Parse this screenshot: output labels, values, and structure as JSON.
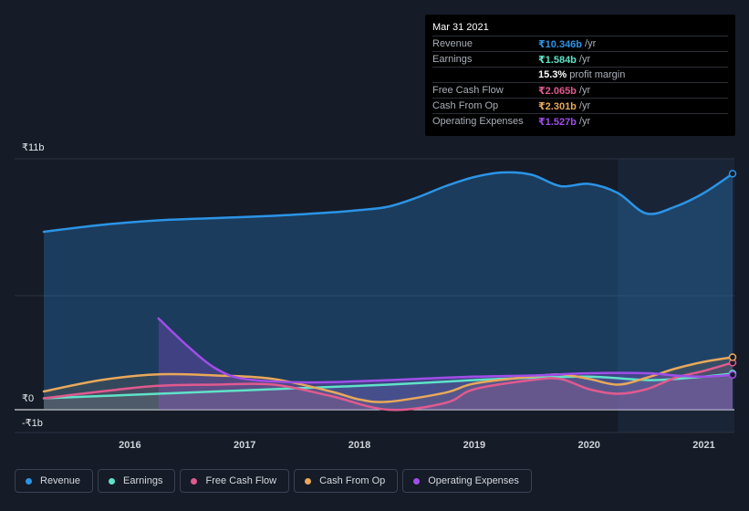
{
  "tooltip": {
    "date": "Mar 31 2021",
    "rows": [
      {
        "name": "Revenue",
        "value": "₹10.346b",
        "unit": "/yr",
        "color": "#2b94e6"
      },
      {
        "name": "Earnings",
        "value": "₹1.584b",
        "unit": "/yr",
        "color": "#5fe2c8"
      },
      {
        "name": "",
        "value": "15.3%",
        "unit": "profit margin",
        "color": "#ffffff"
      },
      {
        "name": "Free Cash Flow",
        "value": "₹2.065b",
        "unit": "/yr",
        "color": "#e05a8f"
      },
      {
        "name": "Cash From Op",
        "value": "₹2.301b",
        "unit": "/yr",
        "color": "#e9a85a"
      },
      {
        "name": "Operating Expenses",
        "value": "₹1.527b",
        "unit": "/yr",
        "color": "#a04ee8"
      }
    ]
  },
  "legend": [
    {
      "label": "Revenue",
      "color": "#2b94e6"
    },
    {
      "label": "Earnings",
      "color": "#5fe2c8"
    },
    {
      "label": "Free Cash Flow",
      "color": "#e05a8f"
    },
    {
      "label": "Cash From Op",
      "color": "#e9a85a"
    },
    {
      "label": "Operating Expenses",
      "color": "#a04ee8"
    }
  ],
  "chart_data": {
    "type": "area",
    "y_unit": "₹ billions",
    "ylim": [
      -1,
      11
    ],
    "y_tick_labels": [
      "₹11b",
      "₹0",
      "-₹1b"
    ],
    "x_tick_labels": [
      "2016",
      "2017",
      "2018",
      "2019",
      "2020",
      "2021"
    ],
    "xlim": [
      2015.25,
      2021.25
    ],
    "highlight_range": [
      2020.25,
      2021.25
    ],
    "series": [
      {
        "name": "Revenue",
        "color": "#2b94e6",
        "x": [
          2015.25,
          2015.75,
          2016.25,
          2016.75,
          2017.25,
          2017.75,
          2018.0,
          2018.25,
          2018.5,
          2018.75,
          2019.0,
          2019.25,
          2019.5,
          2019.75,
          2020.0,
          2020.25,
          2020.5,
          2020.75,
          2021.0,
          2021.25
        ],
        "y": [
          7.8,
          8.1,
          8.3,
          8.4,
          8.5,
          8.65,
          8.75,
          8.9,
          9.3,
          9.8,
          10.2,
          10.4,
          10.3,
          9.8,
          9.9,
          9.5,
          8.6,
          8.9,
          9.5,
          10.346
        ]
      },
      {
        "name": "Earnings",
        "color": "#5fe2c8",
        "x": [
          2015.25,
          2016.0,
          2016.75,
          2017.5,
          2018.25,
          2019.0,
          2019.5,
          2020.0,
          2020.5,
          2020.75,
          2021.0,
          2021.25
        ],
        "y": [
          0.5,
          0.65,
          0.8,
          0.95,
          1.1,
          1.3,
          1.4,
          1.45,
          1.3,
          1.35,
          1.45,
          1.584
        ]
      },
      {
        "name": "Free Cash Flow",
        "color": "#e05a8f",
        "x": [
          2015.25,
          2015.75,
          2016.25,
          2016.75,
          2017.25,
          2017.75,
          2018.25,
          2018.75,
          2019.0,
          2019.5,
          2019.75,
          2020.0,
          2020.25,
          2020.5,
          2020.75,
          2021.0,
          2021.25
        ],
        "y": [
          0.5,
          0.8,
          1.05,
          1.1,
          1.1,
          0.6,
          0.0,
          0.3,
          0.9,
          1.3,
          1.35,
          0.9,
          0.7,
          0.9,
          1.4,
          1.7,
          2.065
        ]
      },
      {
        "name": "Cash From Op",
        "color": "#e9a85a",
        "x": [
          2015.25,
          2015.75,
          2016.25,
          2016.75,
          2017.25,
          2017.75,
          2018.0,
          2018.25,
          2018.75,
          2019.0,
          2019.5,
          2019.75,
          2020.0,
          2020.25,
          2020.5,
          2020.75,
          2021.0,
          2021.25
        ],
        "y": [
          0.8,
          1.3,
          1.55,
          1.5,
          1.35,
          0.8,
          0.45,
          0.35,
          0.75,
          1.15,
          1.45,
          1.55,
          1.35,
          1.1,
          1.4,
          1.8,
          2.1,
          2.301
        ]
      },
      {
        "name": "Operating Expenses",
        "color": "#a04ee8",
        "x": [
          2016.25,
          2016.5,
          2016.75,
          2017.0,
          2017.5,
          2018.0,
          2018.5,
          2019.0,
          2019.5,
          2020.0,
          2020.5,
          2020.75,
          2021.0,
          2021.25
        ],
        "y": [
          4.0,
          2.8,
          1.8,
          1.35,
          1.2,
          1.25,
          1.35,
          1.45,
          1.5,
          1.6,
          1.6,
          1.5,
          1.45,
          1.527
        ]
      }
    ]
  }
}
